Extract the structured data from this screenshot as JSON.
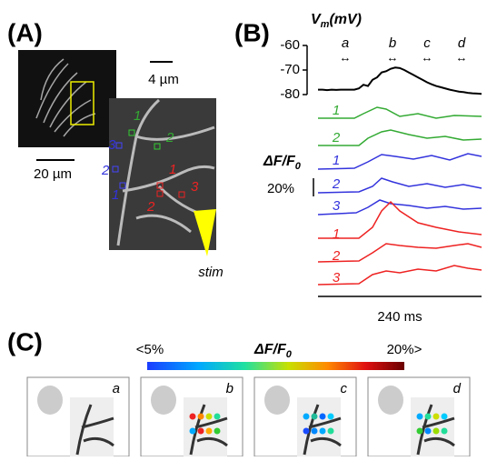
{
  "panel_a": {
    "label": "(A)",
    "scale_large": "20 µm",
    "scale_small": "4 µm",
    "roi_green": [
      "1",
      "2"
    ],
    "roi_blue": [
      "3",
      "2",
      "1"
    ],
    "roi_red": [
      "1",
      "2",
      "3"
    ],
    "stim": "stim"
  },
  "chart_data": {
    "type": "line",
    "label": "(B)",
    "y_symbol": "V",
    "y_sub": "m",
    "y_unit": "(mV)",
    "ylim": [
      -80,
      -60
    ],
    "yticks": [
      -60,
      -70,
      -80
    ],
    "color": "#000000",
    "windows": [
      "a",
      "b",
      "c",
      "d"
    ],
    "values": [
      -78,
      -78,
      -78.2,
      -78,
      -78.1,
      -78,
      -78,
      -78,
      -78,
      -77.5,
      -76,
      -76.5,
      -74,
      -73,
      -71,
      -70.5,
      -69.5,
      -69,
      -69.2,
      -70,
      -71,
      -72,
      -73,
      -74,
      -75,
      -75.8,
      -76.5,
      -77,
      -77.5,
      -78,
      -78.4,
      -78.8,
      -79,
      -79.3,
      -79.5,
      -79.6,
      -79.7
    ],
    "df_symbol": "ΔF/F",
    "df_sub": "0",
    "df_scale": "20%",
    "time_scale": "240 ms",
    "trace_labels": [
      "1",
      "2",
      "1",
      "2",
      "3",
      "1",
      "2",
      "3"
    ]
  },
  "panel_c": {
    "label": "(C)",
    "cb_min": "<5%",
    "cb_title": "ΔF/F",
    "cb_sub": "0",
    "cb_max": "20%>",
    "frames": [
      "a",
      "b",
      "c",
      "d"
    ]
  }
}
